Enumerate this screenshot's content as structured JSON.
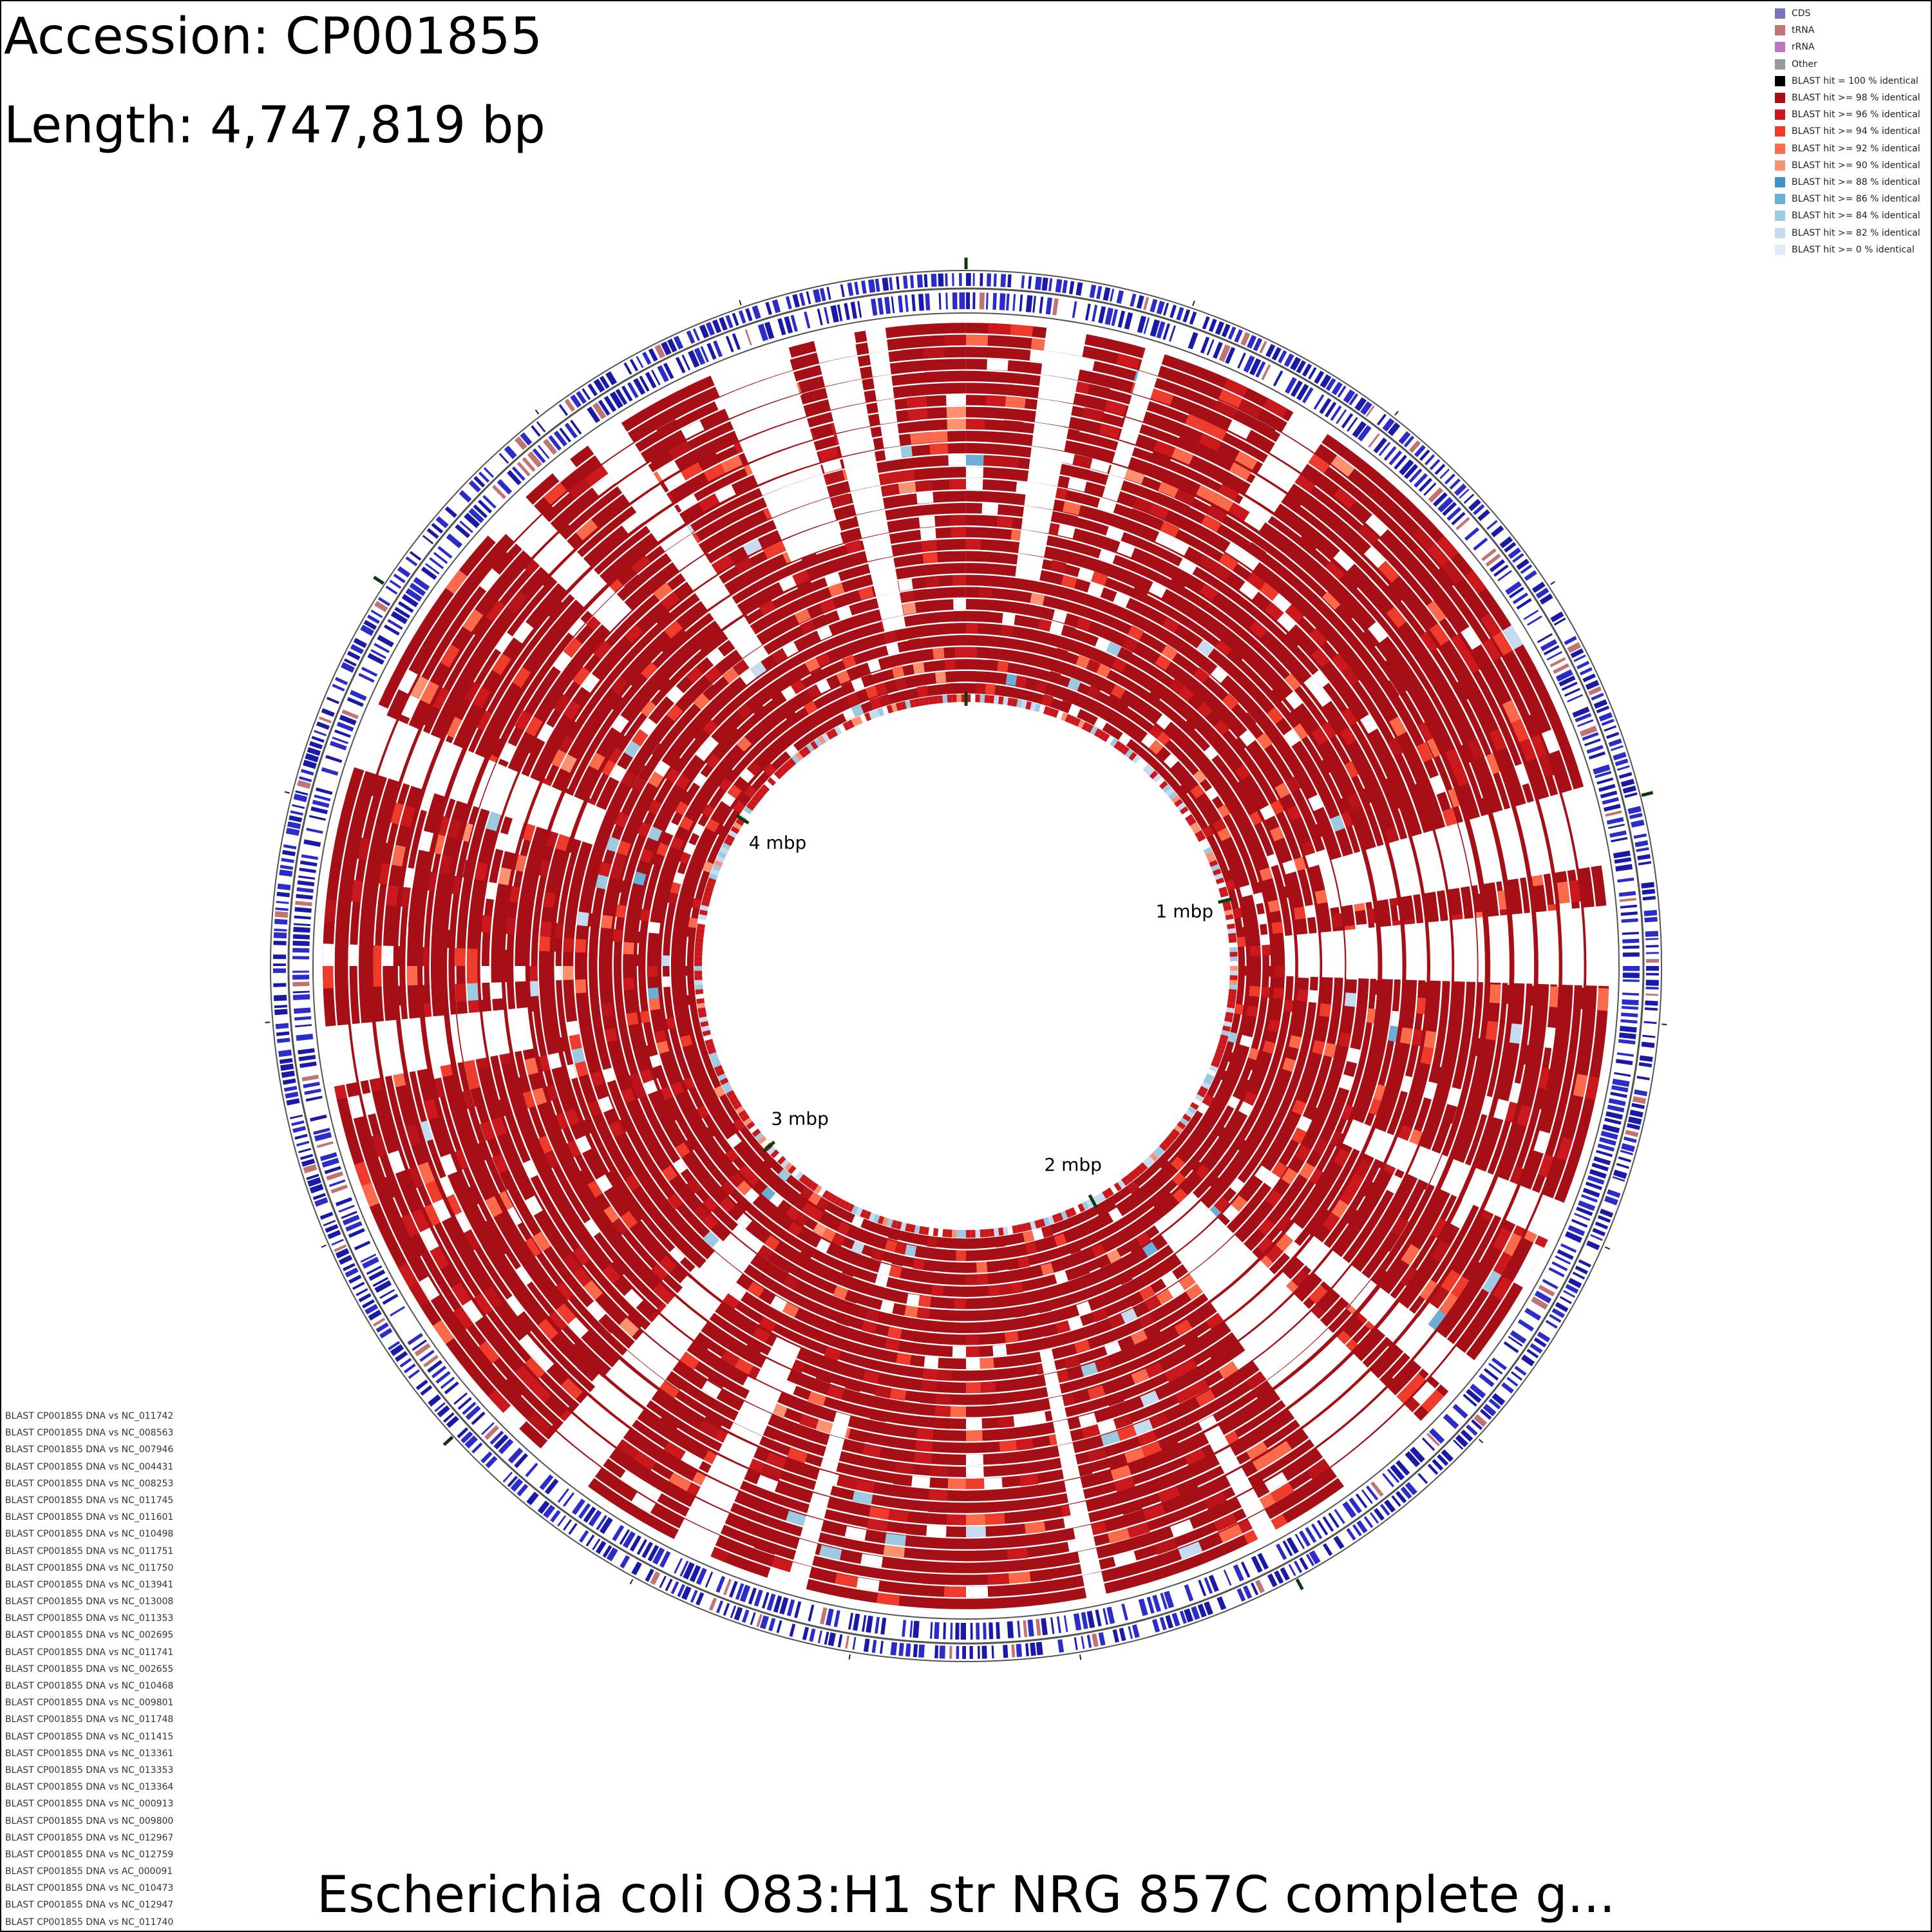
{
  "header": {
    "accession": "Accession: CP001855",
    "length": "Length: 4,747,819 bp"
  },
  "footer": {
    "title": "Escherichia coli O83:H1 str NRG 857C complete g..."
  },
  "legend": [
    {
      "label": "CDS",
      "color": "#7474c0"
    },
    {
      "label": "tRNA",
      "color": "#c07474"
    },
    {
      "label": "rRNA",
      "color": "#c074c0"
    },
    {
      "label": "Other",
      "color": "#999999"
    },
    {
      "label": "BLAST hit = 100 % identical",
      "color": "#000000"
    },
    {
      "label": "BLAST hit >= 98 % identical",
      "color": "#a50f15"
    },
    {
      "label": "BLAST hit >= 96 % identical",
      "color": "#cb181d"
    },
    {
      "label": "BLAST hit >= 94 % identical",
      "color": "#ef3b2c"
    },
    {
      "label": "BLAST hit >= 92 % identical",
      "color": "#fb6a4a"
    },
    {
      "label": "BLAST hit >= 90 % identical",
      "color": "#fc9272"
    },
    {
      "label": "BLAST hit >= 88 % identical",
      "color": "#4292c6"
    },
    {
      "label": "BLAST hit >= 86 % identical",
      "color": "#6baed6"
    },
    {
      "label": "BLAST hit >= 84 % identical",
      "color": "#9ecae1"
    },
    {
      "label": "BLAST hit >= 82 % identical",
      "color": "#c6dbef"
    },
    {
      "label": "BLAST hit >= 0 % identical",
      "color": "#deebf7"
    }
  ],
  "blast_tracks": [
    "BLAST CP001855 DNA vs NC_011742",
    "BLAST CP001855 DNA vs NC_008563",
    "BLAST CP001855 DNA vs NC_007946",
    "BLAST CP001855 DNA vs NC_004431",
    "BLAST CP001855 DNA vs NC_008253",
    "BLAST CP001855 DNA vs NC_011745",
    "BLAST CP001855 DNA vs NC_011601",
    "BLAST CP001855 DNA vs NC_010498",
    "BLAST CP001855 DNA vs NC_011751",
    "BLAST CP001855 DNA vs NC_011750",
    "BLAST CP001855 DNA vs NC_013941",
    "BLAST CP001855 DNA vs NC_013008",
    "BLAST CP001855 DNA vs NC_011353",
    "BLAST CP001855 DNA vs NC_002695",
    "BLAST CP001855 DNA vs NC_011741",
    "BLAST CP001855 DNA vs NC_002655",
    "BLAST CP001855 DNA vs NC_010468",
    "BLAST CP001855 DNA vs NC_009801",
    "BLAST CP001855 DNA vs NC_011748",
    "BLAST CP001855 DNA vs NC_011415",
    "BLAST CP001855 DNA vs NC_013361",
    "BLAST CP001855 DNA vs NC_013353",
    "BLAST CP001855 DNA vs NC_013364",
    "BLAST CP001855 DNA vs NC_000913",
    "BLAST CP001855 DNA vs NC_009800",
    "BLAST CP001855 DNA vs NC_012967",
    "BLAST CP001855 DNA vs NC_012759",
    "BLAST CP001855 DNA vs AC_000091",
    "BLAST CP001855 DNA vs NC_010473",
    "BLAST CP001855 DNA vs NC_012947",
    "BLAST CP001855 DNA vs NC_011740"
  ],
  "map": {
    "sequence_length_bp": 4747819,
    "scale_labels": [
      {
        "text": "1 mbp",
        "position_mbp": 1
      },
      {
        "text": "2 mbp",
        "position_mbp": 2
      },
      {
        "text": "3 mbp",
        "position_mbp": 3
      },
      {
        "text": "4 mbp",
        "position_mbp": 4
      }
    ],
    "colors": {
      "cds": "#1a1aa6",
      "backbone": "#555555",
      "blast_dominant": "#a50f15",
      "tick": "#0b3d0b"
    }
  }
}
